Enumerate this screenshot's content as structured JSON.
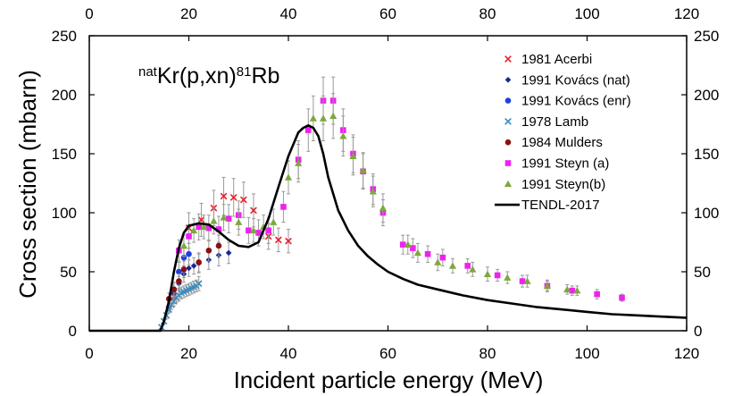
{
  "chart_data": {
    "type": "scatter",
    "title": "natKr(p,xn)81Rb",
    "title_parts": {
      "pre_sup": "nat",
      "base": "Kr(p,xn)",
      "mid_sup": "81",
      "tail": "Rb"
    },
    "xlabel": "Incident particle energy (MeV)",
    "ylabel": "Cross section (mbarn)",
    "xlim": [
      0,
      120
    ],
    "ylim": [
      0,
      250
    ],
    "xticks": [
      0,
      20,
      40,
      60,
      80,
      100,
      120
    ],
    "yticks": [
      0,
      50,
      100,
      150,
      200,
      250
    ],
    "secondary_axes": true,
    "grid": false,
    "legend_position": "top-right",
    "series": [
      {
        "name": "1981 Acerbi",
        "marker": "x",
        "color": "#e8202a",
        "x": [
          17,
          20,
          22.5,
          25,
          27,
          29,
          31,
          33,
          36,
          38,
          40
        ],
        "y": [
          29,
          87,
          94,
          104,
          114,
          113,
          111,
          102,
          80,
          77,
          76
        ],
        "err": [
          6,
          13,
          14,
          15,
          16,
          16,
          15,
          14,
          11,
          10,
          10
        ]
      },
      {
        "name": "1991 Kovács (nat)",
        "marker": "diamond",
        "color": "#13279a",
        "x": [
          17,
          18,
          19,
          20,
          21,
          22,
          24,
          26,
          28
        ],
        "y": [
          32,
          40,
          48,
          53,
          55,
          57,
          60,
          64,
          66
        ],
        "err": [
          5,
          6,
          7,
          7,
          7,
          8,
          8,
          9,
          9
        ]
      },
      {
        "name": "1991 Kovács (enr)",
        "marker": "circle",
        "color": "#1f3fe0",
        "x": [
          16,
          17,
          18,
          19,
          20
        ],
        "y": [
          20,
          35,
          50,
          62,
          65
        ],
        "err": [
          4,
          6,
          8,
          9,
          9
        ]
      },
      {
        "name": "1978 Lamb",
        "marker": "x",
        "color": "#3b8bc2",
        "x": [
          14.5,
          15,
          15.5,
          16,
          16.5,
          17,
          17.5,
          18,
          18.5,
          19,
          19.5,
          20,
          20.5,
          21,
          21.5,
          22
        ],
        "y": [
          3,
          8,
          13,
          18,
          22,
          25,
          28,
          30,
          32,
          33,
          34,
          35,
          36,
          37,
          38,
          40
        ],
        "err": [
          1,
          2,
          3,
          3,
          4,
          4,
          4,
          5,
          5,
          5,
          5,
          5,
          5,
          5,
          5,
          6
        ]
      },
      {
        "name": "1984 Mulders",
        "marker": "circle",
        "color": "#8b1010",
        "x": [
          16,
          17,
          18,
          19,
          22,
          24,
          26
        ],
        "y": [
          27,
          35,
          42,
          52,
          58,
          68,
          72
        ],
        "err": [
          5,
          6,
          6,
          7,
          8,
          9,
          9
        ]
      },
      {
        "name": "1991 Steyn (a)",
        "marker": "square",
        "color": "#ee22ee",
        "x": [
          18,
          20,
          22,
          24,
          26,
          28,
          30,
          32,
          34,
          36,
          39,
          42,
          44,
          47,
          49,
          51,
          53,
          55,
          57,
          59,
          63,
          65,
          68,
          71,
          76,
          82,
          87,
          92,
          97,
          102,
          107
        ],
        "y": [
          68,
          80,
          88,
          87,
          86,
          95,
          98,
          85,
          83,
          85,
          105,
          145,
          170,
          195,
          195,
          170,
          150,
          135,
          120,
          100,
          73,
          70,
          65,
          62,
          55,
          47,
          42,
          38,
          34,
          31,
          28
        ],
        "err": [
          9,
          10,
          11,
          11,
          11,
          12,
          12,
          11,
          11,
          11,
          13,
          16,
          18,
          20,
          20,
          18,
          16,
          15,
          13,
          11,
          8,
          8,
          7,
          7,
          6,
          5,
          5,
          4,
          4,
          4,
          3
        ]
      },
      {
        "name": "1991 Steyn(b)",
        "marker": "triangle",
        "color": "#7da83e",
        "x": [
          19,
          21,
          23,
          25,
          27,
          30,
          33,
          35,
          37,
          40,
          42,
          45,
          47,
          49,
          51,
          53,
          55,
          57,
          59,
          64,
          66,
          70,
          73,
          77,
          80,
          84,
          88,
          92,
          96,
          98
        ],
        "y": [
          72,
          85,
          88,
          93,
          96,
          92,
          85,
          88,
          92,
          130,
          142,
          180,
          180,
          182,
          165,
          148,
          136,
          118,
          104,
          73,
          66,
          58,
          55,
          52,
          48,
          45,
          42,
          38,
          35,
          34
        ],
        "err": [
          9,
          10,
          10,
          11,
          11,
          11,
          10,
          10,
          11,
          14,
          16,
          19,
          19,
          19,
          17,
          16,
          15,
          13,
          12,
          8,
          8,
          7,
          6,
          6,
          6,
          5,
          5,
          5,
          4,
          4
        ]
      },
      {
        "name": "TENDL-2017",
        "type": "line",
        "color": "#000000",
        "x": [
          0,
          14.3,
          15,
          16,
          17,
          18,
          19,
          20,
          21,
          22,
          24,
          26,
          28,
          30,
          32,
          34,
          36,
          38,
          40,
          42,
          43,
          44,
          45,
          46,
          47,
          48,
          50,
          52,
          54,
          56,
          58,
          60,
          63,
          66,
          70,
          75,
          80,
          85,
          90,
          95,
          100,
          105,
          110,
          115,
          120
        ],
        "y": [
          0,
          0,
          8,
          25,
          50,
          70,
          83,
          89,
          90,
          91,
          90,
          84,
          77,
          72,
          71,
          75,
          95,
          122,
          148,
          168,
          172,
          174,
          172,
          165,
          150,
          130,
          102,
          85,
          72,
          63,
          56,
          50,
          44,
          39,
          35,
          30,
          26,
          23,
          20,
          18,
          16,
          14,
          13,
          12,
          11
        ]
      }
    ]
  }
}
